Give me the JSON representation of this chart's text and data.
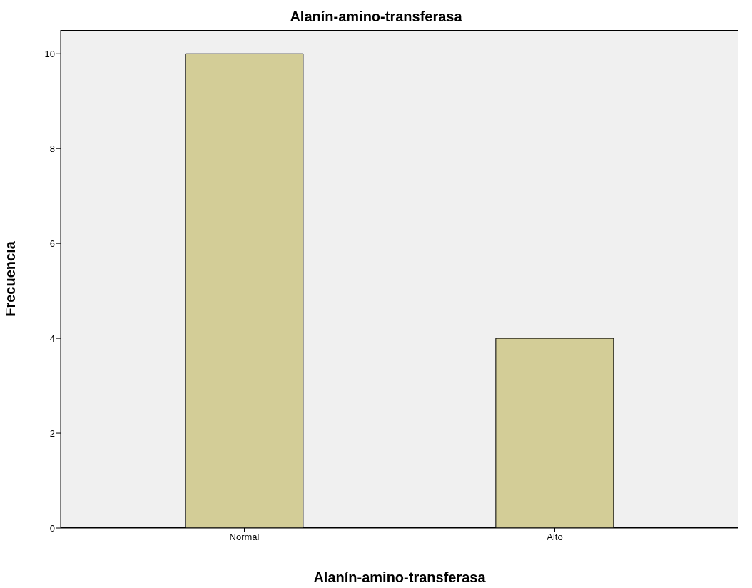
{
  "chart_data": {
    "type": "bar",
    "title": "Alanín-amino-transferasa",
    "xlabel": "Alanín-amino-transferasa",
    "ylabel": "Frecuencia",
    "categories": [
      "Normal",
      "Alto"
    ],
    "values": [
      10,
      4
    ],
    "color": "#d3cd97",
    "ylim": [
      0,
      10.5
    ],
    "yticks": [
      0,
      2,
      4,
      6,
      8,
      10
    ],
    "grid": false,
    "legend": false
  }
}
